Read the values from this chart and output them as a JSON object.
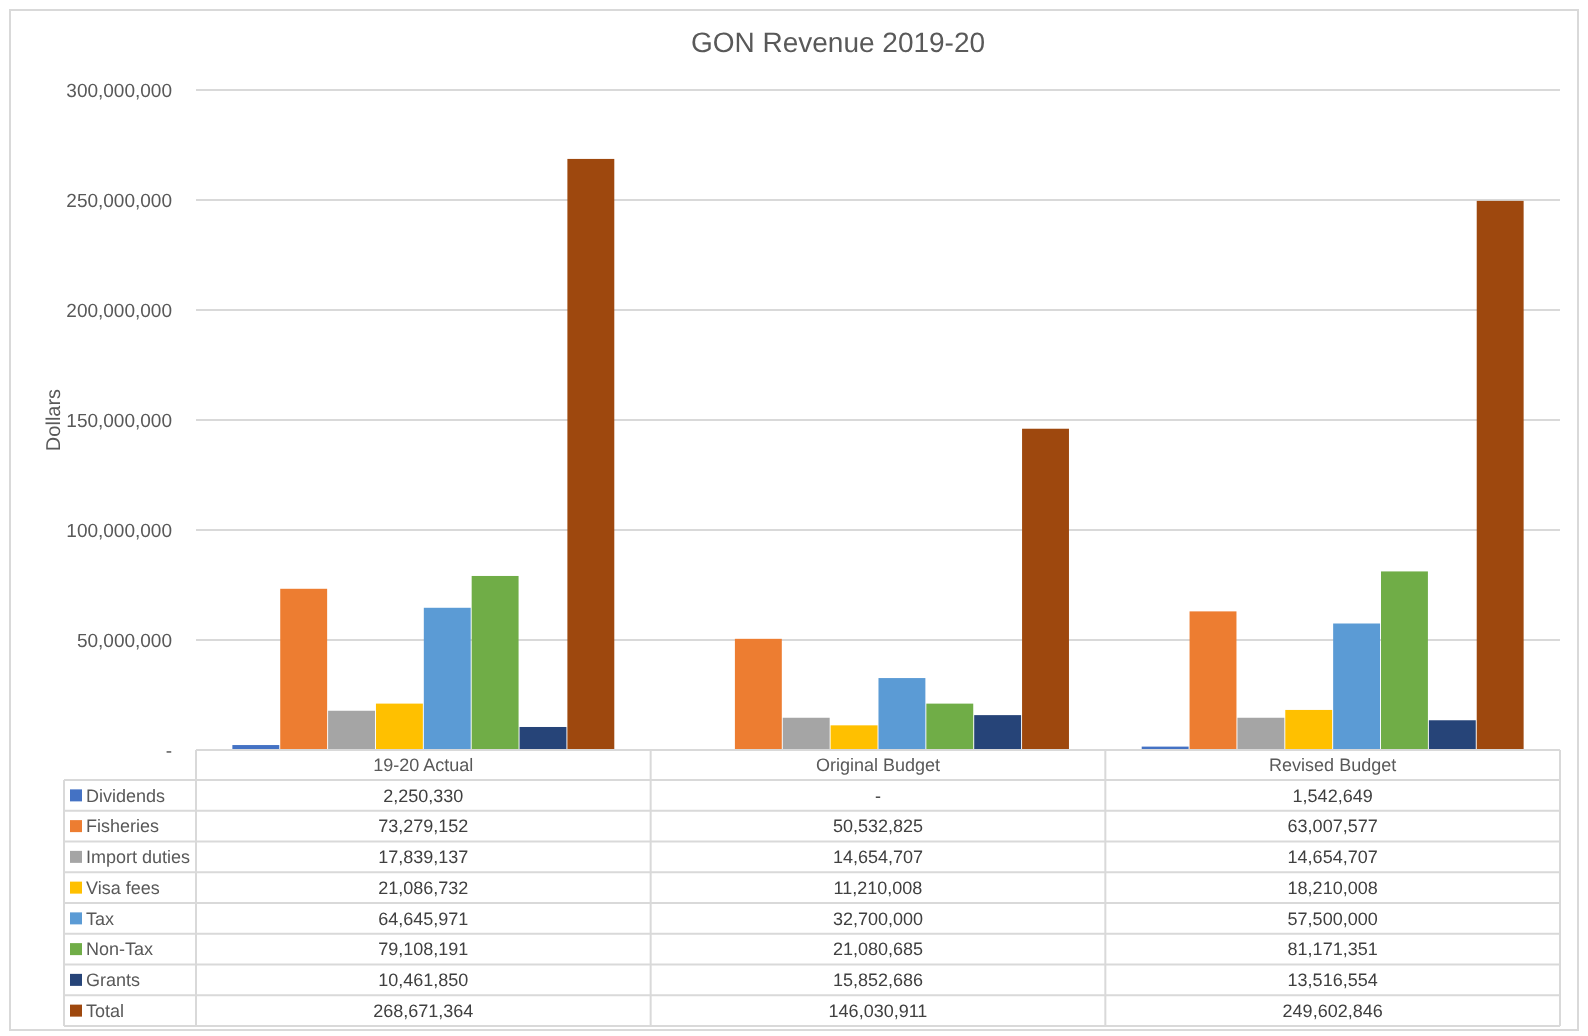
{
  "chart_data": {
    "type": "bar",
    "title": "GON Revenue 2019-20",
    "ylabel": "Dollars",
    "categories": [
      "19-20 Actual",
      "Original Budget",
      "Revised Budget"
    ],
    "series": [
      {
        "name": "Dividends",
        "color": "#4472c4",
        "values": [
          2250330,
          0,
          1542649
        ],
        "value_labels": [
          "2,250,330",
          "-",
          "1,542,649"
        ]
      },
      {
        "name": "Fisheries",
        "color": "#ed7d31",
        "values": [
          73279152,
          50532825,
          63007577
        ],
        "value_labels": [
          "73,279,152",
          "50,532,825",
          "63,007,577"
        ]
      },
      {
        "name": "Import duties",
        "color": "#a5a5a5",
        "values": [
          17839137,
          14654707,
          14654707
        ],
        "value_labels": [
          "17,839,137",
          "14,654,707",
          "14,654,707"
        ]
      },
      {
        "name": "Visa fees",
        "color": "#ffc000",
        "values": [
          21086732,
          11210008,
          18210008
        ],
        "value_labels": [
          "21,086,732",
          "11,210,008",
          "18,210,008"
        ]
      },
      {
        "name": "Tax",
        "color": "#5b9bd5",
        "values": [
          64645971,
          32700000,
          57500000
        ],
        "value_labels": [
          "64,645,971",
          "32,700,000",
          "57,500,000"
        ]
      },
      {
        "name": "Non-Tax",
        "color": "#70ad47",
        "values": [
          79108191,
          21080685,
          81171351
        ],
        "value_labels": [
          "79,108,191",
          "21,080,685",
          "81,171,351"
        ]
      },
      {
        "name": "Grants",
        "color": "#264478",
        "values": [
          10461850,
          15852686,
          13516554
        ],
        "value_labels": [
          "10,461,850",
          "15,852,686",
          "13,516,554"
        ]
      },
      {
        "name": "Total",
        "color": "#9e480e",
        "values": [
          268671364,
          146030911,
          249602846
        ],
        "value_labels": [
          "268,671,364",
          "146,030,911",
          "249,602,846"
        ]
      }
    ],
    "ylim": [
      0,
      300000000
    ],
    "yticks": [
      {
        "value": 0,
        "label": "-"
      },
      {
        "value": 50000000,
        "label": "50,000,000"
      },
      {
        "value": 100000000,
        "label": "100,000,000"
      },
      {
        "value": 150000000,
        "label": "150,000,000"
      },
      {
        "value": 200000000,
        "label": "200,000,000"
      },
      {
        "value": 250000000,
        "label": "250,000,000"
      },
      {
        "value": 300000000,
        "label": "300,000,000"
      }
    ],
    "grid": "y",
    "legend": "bottom"
  }
}
